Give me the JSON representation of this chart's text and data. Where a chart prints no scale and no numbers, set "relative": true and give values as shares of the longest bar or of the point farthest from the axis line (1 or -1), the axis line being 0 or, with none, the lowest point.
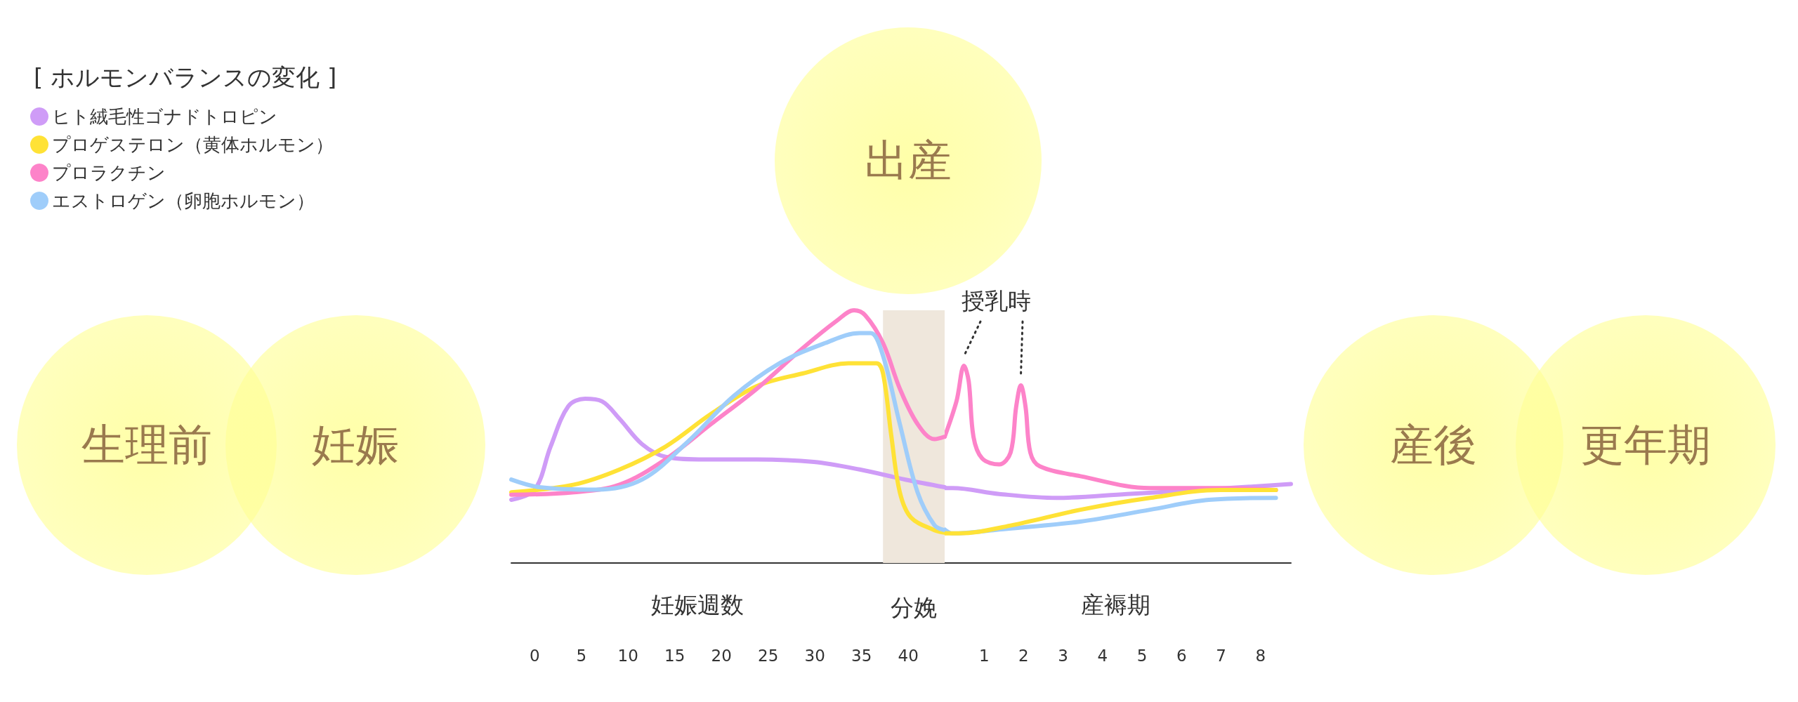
{
  "chart_data": [
    {
      "type": "line",
      "relative": true,
      "legend_title": "[ ホルモンバランスの変化 ]",
      "legend": "top left",
      "grid": false,
      "marker": "none",
      "line_style": "solid",
      "xlim": [
        -2.5,
        43.9
      ],
      "xticks": [
        0,
        5,
        10,
        15,
        20,
        25,
        30,
        35,
        40
      ],
      "bands": [
        {
          "axis": "x",
          "from": 37.3,
          "to": 43.9,
          "label": "分娩",
          "color": "#efe7dc"
        }
      ],
      "annotations": [
        "生理前",
        "妊娠",
        "出産",
        "妊娠週数"
      ],
      "series": [
        {
          "name": "ヒト絨毛性ゴナドトロピン",
          "color": "#cf9cf7",
          "x": [
            -2.5,
            0,
            1.7,
            3.6,
            5.4,
            7.2,
            9.1,
            11.5,
            14,
            17.6,
            23.8,
            29.9,
            34.8,
            39.7,
            43.9
          ],
          "values": [
            0.25,
            0.29,
            0.46,
            0.62,
            0.65,
            0.64,
            0.57,
            0.47,
            0.42,
            0.41,
            0.41,
            0.4,
            0.37,
            0.33,
            0.3
          ]
        },
        {
          "name": "プロゲステロン（黄体ホルモン）",
          "color": "#ffe236",
          "x": [
            -2.5,
            4.2,
            9.1,
            14,
            18.9,
            23.8,
            28.7,
            33.6,
            36.6,
            37.3,
            38.2,
            39.1,
            40.3,
            42.8,
            43.9
          ],
          "values": [
            0.28,
            0.31,
            0.37,
            0.46,
            0.59,
            0.7,
            0.75,
            0.79,
            0.79,
            0.75,
            0.5,
            0.28,
            0.18,
            0.13,
            0.12
          ]
        },
        {
          "name": "プロラクチン",
          "color": "#fd83c9",
          "x": [
            -2.5,
            4.2,
            9.1,
            14,
            18.9,
            23.8,
            28.7,
            32.4,
            34.2,
            35.4,
            37.3,
            39.1,
            41,
            42.8,
            43.9
          ],
          "values": [
            0.27,
            0.28,
            0.31,
            0.41,
            0.55,
            0.69,
            0.85,
            0.96,
            1,
            0.98,
            0.87,
            0.69,
            0.55,
            0.49,
            0.5
          ]
        },
        {
          "name": "エストロゲン（卵胞ホルモン）",
          "color": "#9fcdfa",
          "x": [
            -2.5,
            0.5,
            6.6,
            11.5,
            16.4,
            21.3,
            26.2,
            31.1,
            34.8,
            36,
            37.3,
            39.1,
            41,
            42.8,
            43.9
          ],
          "values": [
            0.33,
            0.3,
            0.29,
            0.33,
            0.48,
            0.66,
            0.79,
            0.87,
            0.91,
            0.91,
            0.82,
            0.55,
            0.28,
            0.15,
            0.13
          ]
        }
      ]
    },
    {
      "type": "line",
      "relative": true,
      "grid": false,
      "marker": "none",
      "line_style": "solid",
      "xlim": [
        0,
        8.77
      ],
      "xticks": [
        1,
        2,
        3,
        4,
        5,
        6,
        7,
        8
      ],
      "annotations": [
        "産後",
        "更年期",
        "産褥期",
        "授乳時"
      ],
      "series": [
        {
          "color": "#cf9cf7",
          "x": [
            0,
            0.2,
            1.38,
            2.84,
            4.62,
            6.37,
            8.77
          ],
          "values": [
            0.38,
            0.38,
            0.35,
            0.33,
            0.35,
            0.37,
            0.4
          ]
        },
        {
          "color": "#fd83c9",
          "x": [
            0,
            0.3,
            0.49,
            0.61,
            0.73,
            0.95,
            1.38,
            1.67,
            1.81,
            1.93,
            2.05,
            2.17,
            2.41,
            3.44,
            5.2,
            6.97,
            8.39
          ],
          "values": [
            0.64,
            0.82,
            1,
            0.92,
            0.64,
            0.53,
            0.5,
            0.56,
            0.79,
            0.9,
            0.79,
            0.56,
            0.49,
            0.44,
            0.38,
            0.38,
            0.37
          ]
        },
        {
          "color": "#9fcdfa",
          "x": [
            0,
            0.2,
            1.38,
            3.44,
            5.2,
            6.69,
            8.39
          ],
          "values": [
            0.17,
            0.15,
            0.17,
            0.21,
            0.27,
            0.32,
            0.33
          ]
        },
        {
          "color": "#ffe236",
          "x": [
            0,
            0.35,
            1.67,
            3.44,
            5.2,
            6.97,
            8.39
          ],
          "values": [
            0.15,
            0.15,
            0.19,
            0.27,
            0.33,
            0.37,
            0.37
          ]
        }
      ]
    }
  ]
}
